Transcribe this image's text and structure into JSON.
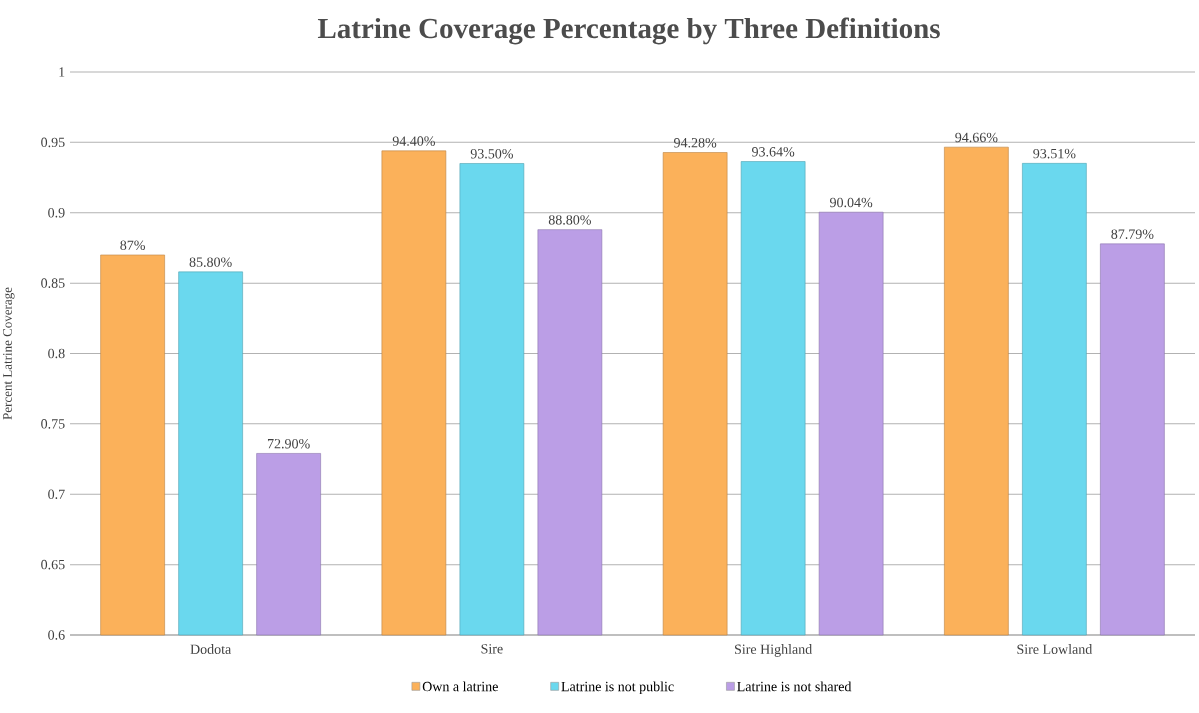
{
  "chart_data": {
    "type": "bar",
    "title": "Latrine Coverage Percentage by Three Definitions",
    "ylabel": "Percent Latrine Coverage",
    "categories": [
      "Dodota",
      "Sire",
      "Sire Highland",
      "Sire Lowland"
    ],
    "series": [
      {
        "name": "Own a latrine",
        "color": "#fbb15a",
        "values": [
          0.87,
          0.944,
          0.9428,
          0.9466
        ],
        "value_labels": [
          "87%",
          "94.40%",
          "94.28%",
          "94.66%"
        ]
      },
      {
        "name": "Latrine  is not public",
        "color": "#6ad8ee",
        "values": [
          0.858,
          0.935,
          0.9364,
          0.9351
        ],
        "value_labels": [
          "85.80%",
          "93.50%",
          "93.64%",
          "93.51%"
        ]
      },
      {
        "name": "Latrine  is not shared",
        "color": "#bb9ee6",
        "values": [
          0.729,
          0.888,
          0.9004,
          0.8779
        ],
        "value_labels": [
          "72.90%",
          "88.80%",
          "90.04%",
          "87.79%"
        ]
      }
    ],
    "ylim": [
      0.6,
      1
    ],
    "yticks": [
      0.6,
      0.65,
      0.7,
      0.75,
      0.8,
      0.85,
      0.9,
      0.95,
      1
    ],
    "grid": "y",
    "legend": "bottom"
  }
}
